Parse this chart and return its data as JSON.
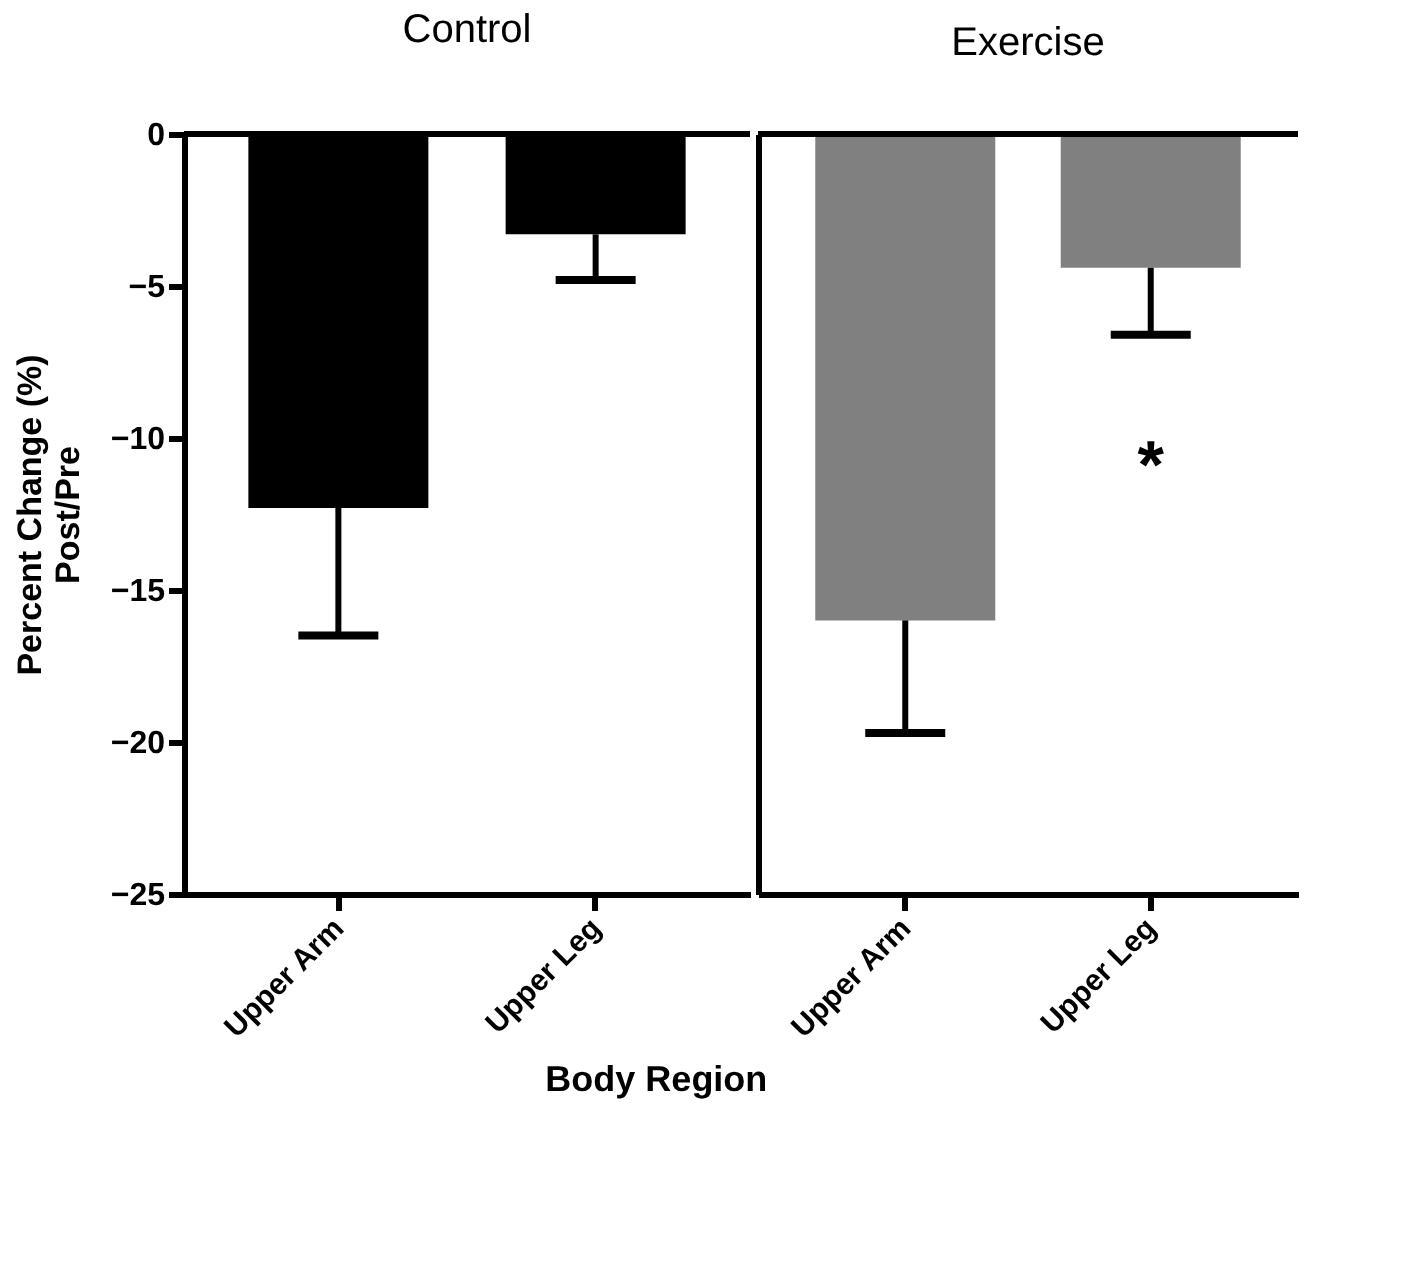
{
  "chart_data": [
    {
      "type": "bar",
      "title": "Control",
      "xlabel": "Body Region",
      "ylabel": "Percent Change (%)\nPost/Pre",
      "categories": [
        "Upper Arm",
        "Upper Leg"
      ],
      "series": [
        {
          "color": "#000000",
          "values": [
            -12.3,
            -3.3
          ],
          "errors": [
            [
              -16.5,
              -12.3
            ],
            [
              -4.8,
              -3.3
            ]
          ]
        }
      ],
      "ylim": [
        -25,
        0
      ],
      "yticks": [
        -25,
        -20,
        -15,
        -10,
        -5,
        0
      ],
      "grid": false,
      "ref_lines": [
        {
          "axis": "y",
          "value": 0
        }
      ]
    },
    {
      "type": "bar",
      "title": "Exercise",
      "categories": [
        "Upper Arm",
        "Upper Leg"
      ],
      "series": [
        {
          "color": "#808080",
          "values": [
            -16.0,
            -4.4
          ],
          "errors": [
            [
              -19.7,
              -16.0
            ],
            [
              -6.6,
              -4.4
            ]
          ]
        }
      ],
      "ylim": [
        -25,
        0
      ],
      "yticks": [
        -25,
        -20,
        -15,
        -10,
        -5,
        0
      ],
      "grid": false,
      "tick_labels": "x",
      "ref_lines": [
        {
          "axis": "y",
          "value": 0
        }
      ],
      "annotations": [
        "*"
      ]
    }
  ]
}
